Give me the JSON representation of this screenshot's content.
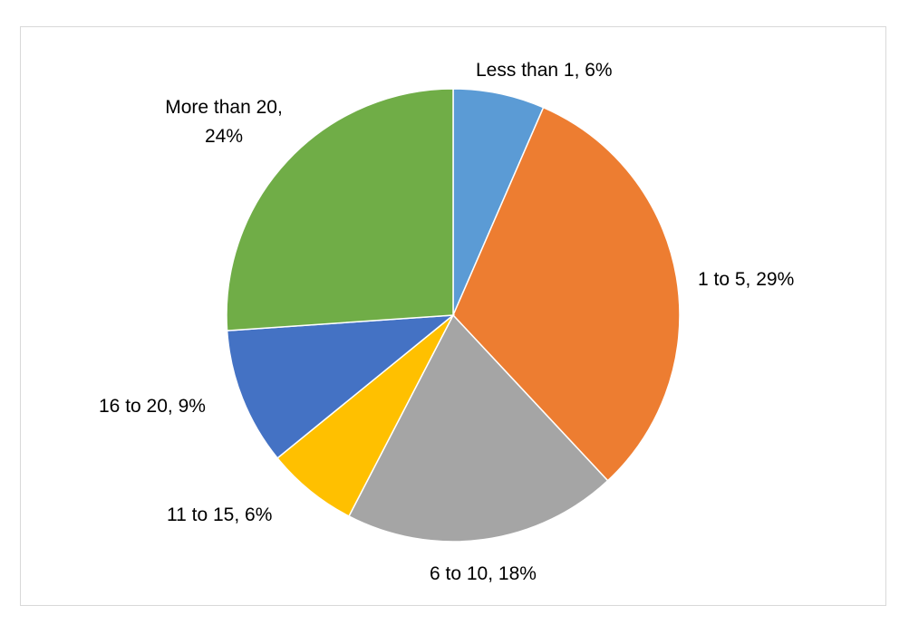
{
  "chart_data": {
    "type": "pie",
    "title": "",
    "slices": [
      {
        "name": "Less than 1",
        "value": 6,
        "color": "#5B9BD5",
        "label_lines": [
          "Less than 1, 6%"
        ]
      },
      {
        "name": "1 to 5",
        "value": 29,
        "color": "#ED7D31",
        "label_lines": [
          "1 to 5, 29%"
        ]
      },
      {
        "name": "6 to 10",
        "value": 18,
        "color": "#A5A5A5",
        "label_lines": [
          "6 to 10, 18%"
        ]
      },
      {
        "name": "11 to 15",
        "value": 6,
        "color": "#FFC000",
        "label_lines": [
          "11 to 15, 6%"
        ]
      },
      {
        "name": "16 to 20",
        "value": 9,
        "color": "#4472C4",
        "label_lines": [
          "16 to 20, 9%"
        ]
      },
      {
        "name": "More than 20",
        "value": 24,
        "color": "#70AD47",
        "label_lines": [
          "More than 20,",
          "24%"
        ]
      }
    ],
    "start_angle": "12 o'clock",
    "direction": "clockwise",
    "legend": "none",
    "data_labels": "outside"
  }
}
